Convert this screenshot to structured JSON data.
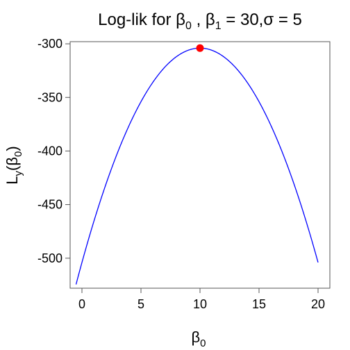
{
  "chart_data": {
    "type": "line",
    "title": {
      "prefix": "Log-lik for β",
      "sub0": "0",
      "mid": " ,  β",
      "sub1": "1",
      "suffix": " = 30,σ = 5"
    },
    "xlabel": {
      "main": "β",
      "sub": "0"
    },
    "ylabel": {
      "main": "L",
      "sub1": "y",
      "paren_open": "(β",
      "sub2": "0",
      "paren_close": ")"
    },
    "xlim": [
      -1,
      21
    ],
    "ylim": [
      -528,
      -298
    ],
    "x_ticks": [
      0,
      5,
      10,
      15,
      20
    ],
    "y_ticks": [
      -300,
      -350,
      -400,
      -450,
      -500
    ],
    "x_tick_labels": [
      "0",
      "5",
      "10",
      "15",
      "20"
    ],
    "y_tick_labels": [
      "-300",
      "-350",
      "-400",
      "-450",
      "-500"
    ],
    "series": [
      {
        "color": "#0000ff",
        "curve": {
          "peak_x": 10,
          "peak_y": -304,
          "curvature": 2.0,
          "x_start": -0.5,
          "x_end": 20
        }
      }
    ],
    "highlight_point": {
      "x": 10,
      "y": -304,
      "color": "#ff0000"
    },
    "grid": false
  }
}
